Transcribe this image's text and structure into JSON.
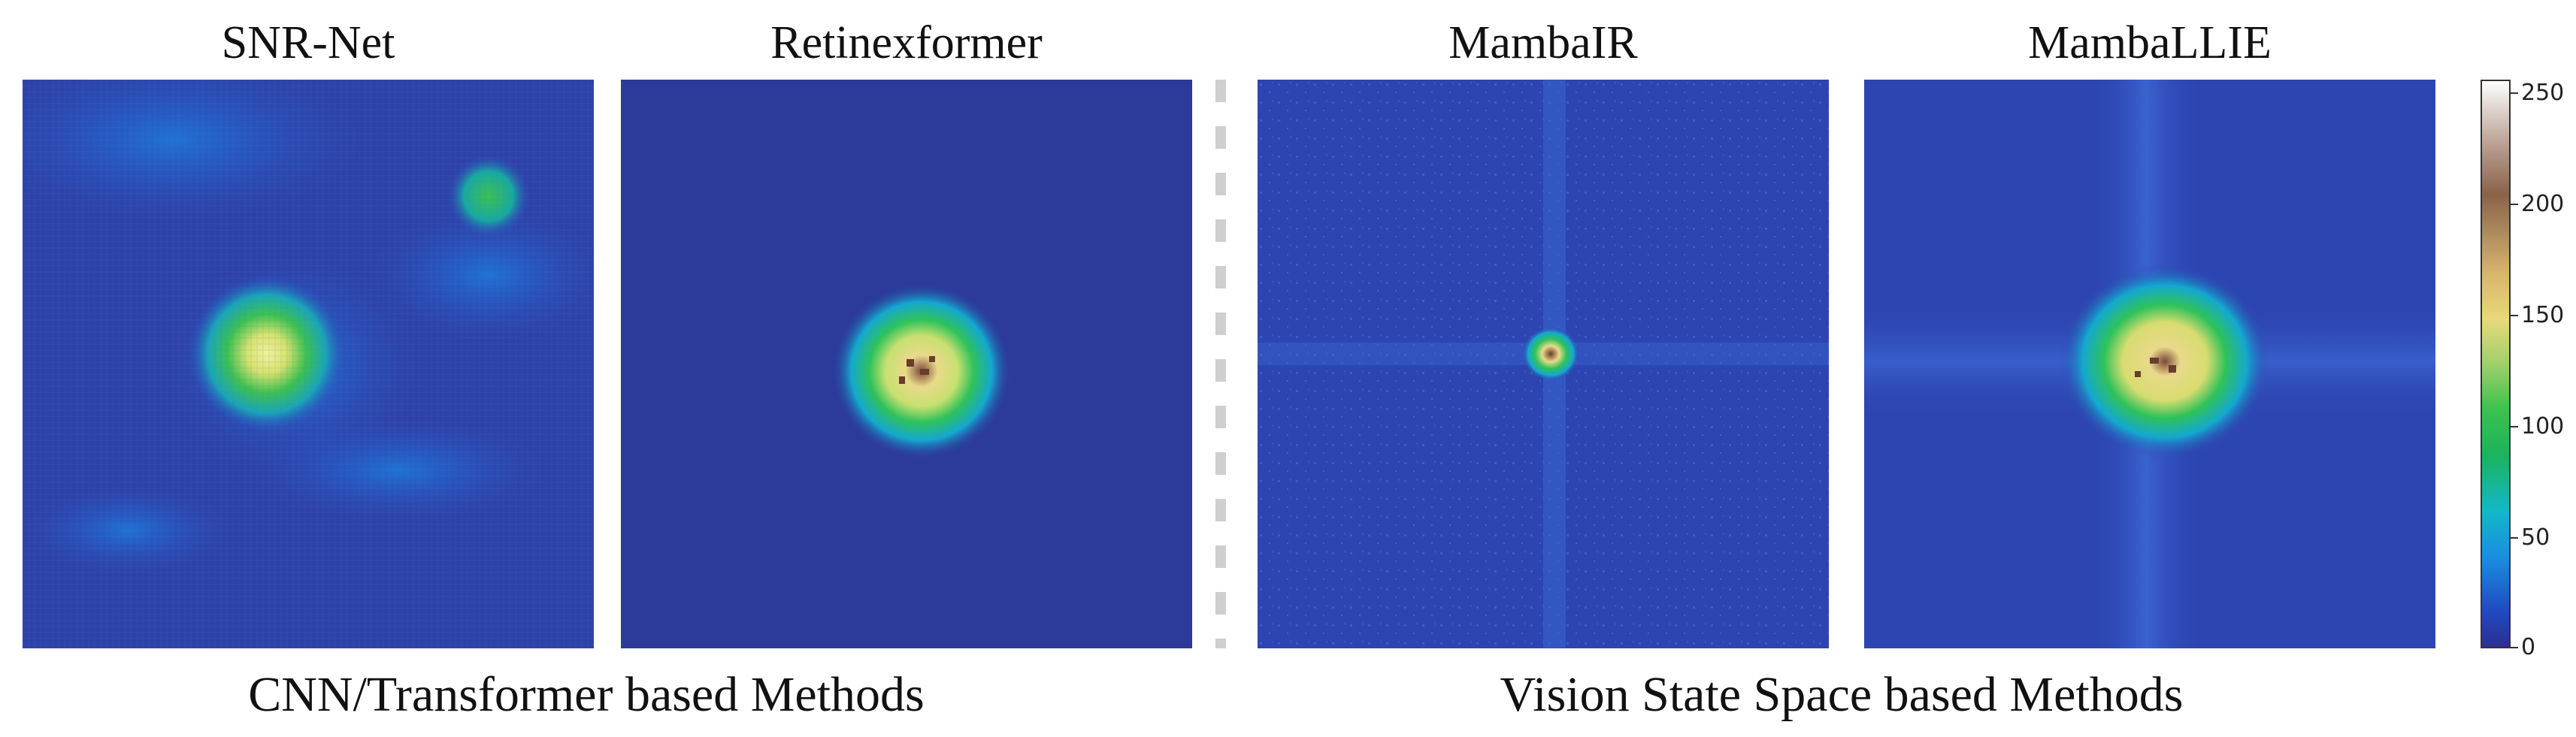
{
  "panels": [
    {
      "title": "SNR-Net"
    },
    {
      "title": "Retinexformer"
    },
    {
      "title": "MambaIR"
    },
    {
      "title": "MambaLLIE"
    }
  ],
  "captions": {
    "left": "CNN/Transformer based Methods",
    "right": "Vision State Space based Methods"
  },
  "colorbar": {
    "ticks": [
      "250",
      "200",
      "150",
      "100",
      "50",
      "0"
    ],
    "range": [
      0,
      255
    ]
  },
  "colors": {
    "background_map": "#2c3a9a",
    "low": "#2148c0",
    "mid": "#1bb35c",
    "high": "#e8d97a",
    "peak": "#8a6248"
  }
}
